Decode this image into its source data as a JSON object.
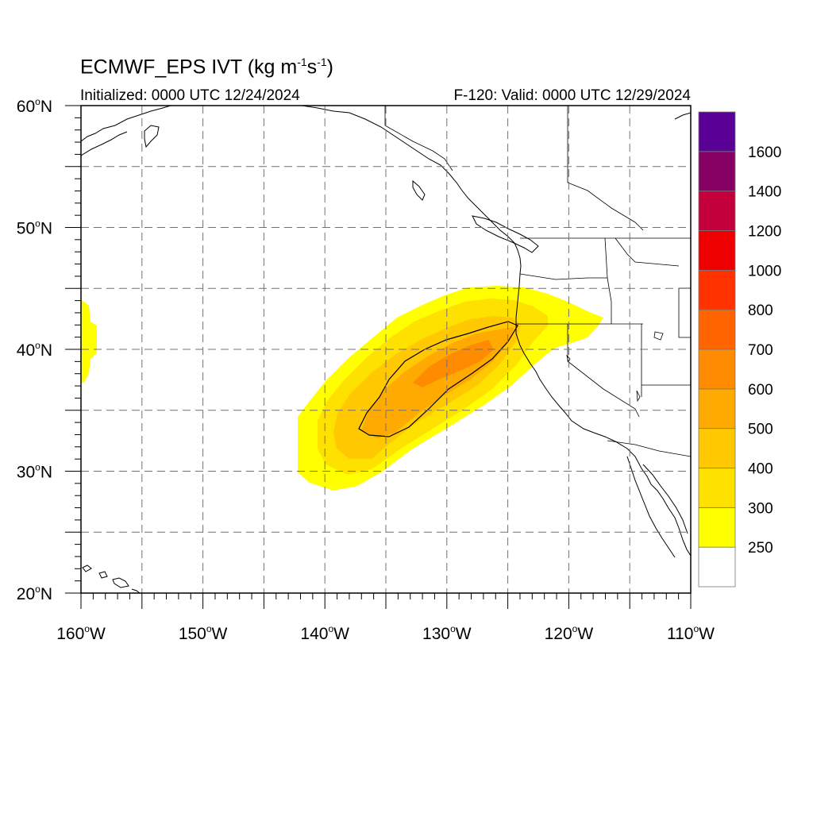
{
  "title": {
    "main": "ECMWF_EPS IVT",
    "units_prefix": "(kg m",
    "units_exp1": "-1",
    "units_mid": "s",
    "units_exp2": "-1",
    "units_suffix": ")"
  },
  "initialized": "Initialized: 0000 UTC 12/24/2024",
  "valid": "F-120: Valid: 0000 UTC 12/29/2024",
  "map": {
    "lon_range": [
      -160,
      -110
    ],
    "lat_range": [
      20,
      60
    ],
    "lat_ticks": [
      {
        "value": 60,
        "label": "60",
        "hemi": "N"
      },
      {
        "value": 50,
        "label": "50",
        "hemi": "N"
      },
      {
        "value": 40,
        "label": "40",
        "hemi": "N"
      },
      {
        "value": 30,
        "label": "30",
        "hemi": "N"
      },
      {
        "value": 20,
        "label": "20",
        "hemi": "N"
      }
    ],
    "lon_ticks": [
      {
        "value": -160,
        "label": "160",
        "hemi": "W"
      },
      {
        "value": -150,
        "label": "150",
        "hemi": "W"
      },
      {
        "value": -140,
        "label": "140",
        "hemi": "W"
      },
      {
        "value": -130,
        "label": "130",
        "hemi": "W"
      },
      {
        "value": -120,
        "label": "120",
        "hemi": "W"
      },
      {
        "value": -110,
        "label": "110",
        "hemi": "W"
      }
    ],
    "grid_dash": true,
    "grid_spacing_deg": 5
  },
  "colorbar": {
    "levels": [
      "250",
      "300",
      "400",
      "500",
      "600",
      "700",
      "800",
      "1000",
      "1200",
      "1400",
      "1600"
    ],
    "colors": [
      "#ffffff",
      "#ffff00",
      "#ffe100",
      "#ffc800",
      "#ffaa00",
      "#ff8c00",
      "#ff6400",
      "#ff3200",
      "#ee0000",
      "#c4003c",
      "#870064",
      "#5a0096"
    ]
  },
  "ivt_plume": {
    "color_300": "#ffff00",
    "color_400": "#ffe100",
    "color_500": "#ffc800",
    "color_600": "#ffaa00",
    "color_700": "#ff8c00"
  }
}
